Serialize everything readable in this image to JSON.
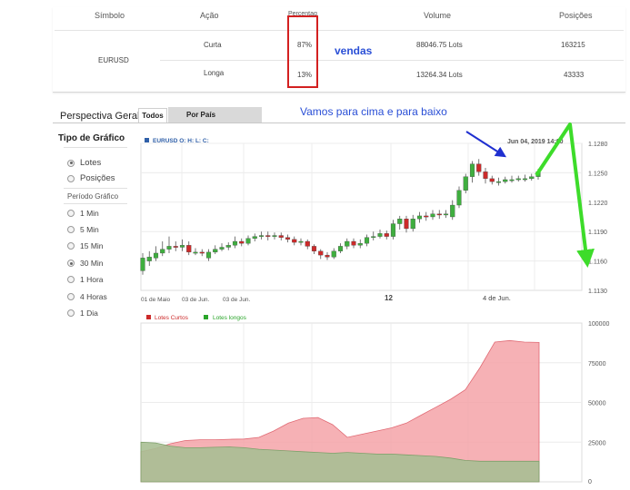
{
  "table": {
    "headers": [
      "Símbolo",
      "Ação",
      "Percentag",
      "Volume",
      "Posições"
    ],
    "symbol": "EURUSD",
    "rows": [
      {
        "action": "Curta",
        "percent": "87%",
        "volume": "88046.75 Lots",
        "positions": "163215"
      },
      {
        "action": "Longa",
        "percent": "13%",
        "volume": "13264.34 Lots",
        "positions": "43333"
      }
    ]
  },
  "annotations": {
    "vendas": "vendas",
    "up_down": "Vamos para cima e para baixo"
  },
  "tabs": {
    "title": "Perspectiva Geral",
    "items": [
      {
        "label": "Todos",
        "active": true
      },
      {
        "label": "Por País",
        "active": false
      }
    ]
  },
  "panel": {
    "title": "Tipo de Gráfico",
    "chart_types": [
      {
        "label": "Lotes",
        "selected": true
      },
      {
        "label": "Posições",
        "selected": false
      }
    ],
    "period_label": "Período Gráfico",
    "periods": [
      {
        "label": "1 Min",
        "selected": false
      },
      {
        "label": "5 Min",
        "selected": false
      },
      {
        "label": "15 Min",
        "selected": false
      },
      {
        "label": "30 Min",
        "selected": true
      },
      {
        "label": "1 Hora",
        "selected": false
      },
      {
        "label": "4 Horas",
        "selected": false
      },
      {
        "label": "1 Dia",
        "selected": false
      }
    ]
  },
  "price_chart": {
    "symbol_line": "EURUSD O: H: L: C:",
    "timestamp": "Jun 04, 2019 14:00",
    "y_ticks": [
      "1.1280",
      "1.1250",
      "1.1220",
      "1.1190",
      "1.1160",
      "1.1130"
    ],
    "x_ticks": [
      "01 de Maio",
      "03 de Jun.",
      "03 de Jun.",
      "12",
      "4 de Jun."
    ],
    "colors": {
      "up": "#3fae3f",
      "down": "#cc2a2a"
    }
  },
  "chart_data": [
    {
      "type": "candlestick",
      "ylim": [
        1.113,
        1.128
      ],
      "candles": [
        {
          "o": 1.115,
          "c": 1.1163,
          "h": 1.1168,
          "l": 1.1146
        },
        {
          "o": 1.116,
          "c": 1.1164,
          "h": 1.117,
          "l": 1.1155
        },
        {
          "o": 1.1163,
          "c": 1.1168,
          "h": 1.1175,
          "l": 1.116
        },
        {
          "o": 1.1168,
          "c": 1.1172,
          "h": 1.118,
          "l": 1.1165
        },
        {
          "o": 1.1172,
          "c": 1.1175,
          "h": 1.1185,
          "l": 1.1168
        },
        {
          "o": 1.1175,
          "c": 1.1174,
          "h": 1.118,
          "l": 1.117
        },
        {
          "o": 1.1174,
          "c": 1.1176,
          "h": 1.1182,
          "l": 1.117
        },
        {
          "o": 1.1176,
          "c": 1.1169,
          "h": 1.118,
          "l": 1.1166
        },
        {
          "o": 1.1169,
          "c": 1.1169,
          "h": 1.1173,
          "l": 1.1166
        },
        {
          "o": 1.1169,
          "c": 1.1168,
          "h": 1.1172,
          "l": 1.1165
        },
        {
          "o": 1.1163,
          "c": 1.1169,
          "h": 1.1172,
          "l": 1.116
        },
        {
          "o": 1.1169,
          "c": 1.1172,
          "h": 1.1176,
          "l": 1.1167
        },
        {
          "o": 1.1172,
          "c": 1.1174,
          "h": 1.1178,
          "l": 1.117
        },
        {
          "o": 1.1174,
          "c": 1.1176,
          "h": 1.1179,
          "l": 1.1171
        },
        {
          "o": 1.1176,
          "c": 1.118,
          "h": 1.1185,
          "l": 1.1173
        },
        {
          "o": 1.118,
          "c": 1.1178,
          "h": 1.1183,
          "l": 1.1175
        },
        {
          "o": 1.1178,
          "c": 1.1183,
          "h": 1.1186,
          "l": 1.1176
        },
        {
          "o": 1.1183,
          "c": 1.1185,
          "h": 1.1188,
          "l": 1.118
        },
        {
          "o": 1.1185,
          "c": 1.1186,
          "h": 1.119,
          "l": 1.1182
        },
        {
          "o": 1.1186,
          "c": 1.1185,
          "h": 1.119,
          "l": 1.1181
        },
        {
          "o": 1.1185,
          "c": 1.1186,
          "h": 1.1189,
          "l": 1.1182
        },
        {
          "o": 1.1186,
          "c": 1.1184,
          "h": 1.1189,
          "l": 1.1181
        },
        {
          "o": 1.1184,
          "c": 1.1182,
          "h": 1.1187,
          "l": 1.1179
        },
        {
          "o": 1.1182,
          "c": 1.1179,
          "h": 1.1185,
          "l": 1.1176
        },
        {
          "o": 1.1179,
          "c": 1.118,
          "h": 1.1183,
          "l": 1.1176
        },
        {
          "o": 1.118,
          "c": 1.1175,
          "h": 1.1182,
          "l": 1.1172
        },
        {
          "o": 1.1175,
          "c": 1.117,
          "h": 1.1177,
          "l": 1.1167
        },
        {
          "o": 1.117,
          "c": 1.1166,
          "h": 1.1172,
          "l": 1.1162
        },
        {
          "o": 1.1166,
          "c": 1.1164,
          "h": 1.1169,
          "l": 1.1161
        },
        {
          "o": 1.1164,
          "c": 1.117,
          "h": 1.1173,
          "l": 1.1162
        },
        {
          "o": 1.117,
          "c": 1.1175,
          "h": 1.1178,
          "l": 1.1168
        },
        {
          "o": 1.1175,
          "c": 1.118,
          "h": 1.1183,
          "l": 1.1172
        },
        {
          "o": 1.118,
          "c": 1.1176,
          "h": 1.1183,
          "l": 1.1173
        },
        {
          "o": 1.1176,
          "c": 1.1178,
          "h": 1.1182,
          "l": 1.1173
        },
        {
          "o": 1.1178,
          "c": 1.1184,
          "h": 1.1187,
          "l": 1.1175
        },
        {
          "o": 1.1184,
          "c": 1.1185,
          "h": 1.119,
          "l": 1.1181
        },
        {
          "o": 1.1185,
          "c": 1.1188,
          "h": 1.1192,
          "l": 1.1183
        },
        {
          "o": 1.1188,
          "c": 1.1185,
          "h": 1.1191,
          "l": 1.1182
        },
        {
          "o": 1.1185,
          "c": 1.1198,
          "h": 1.1202,
          "l": 1.1182
        },
        {
          "o": 1.1198,
          "c": 1.1203,
          "h": 1.1206,
          "l": 1.1192
        },
        {
          "o": 1.1203,
          "c": 1.1193,
          "h": 1.1206,
          "l": 1.1189
        },
        {
          "o": 1.1193,
          "c": 1.1203,
          "h": 1.1207,
          "l": 1.119
        },
        {
          "o": 1.1203,
          "c": 1.1206,
          "h": 1.121,
          "l": 1.1199
        },
        {
          "o": 1.1206,
          "c": 1.1205,
          "h": 1.121,
          "l": 1.1201
        },
        {
          "o": 1.1205,
          "c": 1.1208,
          "h": 1.1212,
          "l": 1.1202
        },
        {
          "o": 1.1208,
          "c": 1.1207,
          "h": 1.1212,
          "l": 1.1203
        },
        {
          "o": 1.1207,
          "c": 1.1208,
          "h": 1.1212,
          "l": 1.1204
        },
        {
          "o": 1.1205,
          "c": 1.1217,
          "h": 1.1222,
          "l": 1.1202
        },
        {
          "o": 1.1217,
          "c": 1.1232,
          "h": 1.1236,
          "l": 1.1214
        },
        {
          "o": 1.1232,
          "c": 1.1246,
          "h": 1.1249,
          "l": 1.1229
        },
        {
          "o": 1.1246,
          "c": 1.1259,
          "h": 1.1262,
          "l": 1.124
        },
        {
          "o": 1.1259,
          "c": 1.1251,
          "h": 1.1264,
          "l": 1.1247
        },
        {
          "o": 1.1251,
          "c": 1.1244,
          "h": 1.1255,
          "l": 1.1239
        },
        {
          "o": 1.1244,
          "c": 1.1241,
          "h": 1.1247,
          "l": 1.1238
        },
        {
          "o": 1.1241,
          "c": 1.1241,
          "h": 1.1245,
          "l": 1.1237
        },
        {
          "o": 1.1241,
          "c": 1.1243,
          "h": 1.1246,
          "l": 1.1239
        },
        {
          "o": 1.1243,
          "c": 1.1243,
          "h": 1.1247,
          "l": 1.124
        },
        {
          "o": 1.1243,
          "c": 1.1244,
          "h": 1.1247,
          "l": 1.1241
        },
        {
          "o": 1.1244,
          "c": 1.1244,
          "h": 1.1248,
          "l": 1.1241
        },
        {
          "o": 1.1244,
          "c": 1.1246,
          "h": 1.1249,
          "l": 1.1242
        },
        {
          "o": 1.1246,
          "c": 1.1251,
          "h": 1.1254,
          "l": 1.1243
        }
      ]
    },
    {
      "type": "area",
      "ylim": [
        0,
        100000
      ],
      "y_ticks": [
        "100000",
        "75000",
        "50000",
        "25000",
        "0"
      ],
      "legend": [
        "Lotes Curtos",
        "Lotes longos"
      ],
      "series": [
        {
          "name": "Lotes Curtos",
          "color": "#f4a3a8",
          "values": [
            19000,
            21000,
            24000,
            26000,
            26500,
            26500,
            26800,
            27000,
            28000,
            32000,
            37000,
            40000,
            40500,
            36000,
            28000,
            30000,
            32000,
            34000,
            37000,
            42000,
            47000,
            52000,
            58000,
            72000,
            88000,
            89000,
            88000,
            87800
          ]
        },
        {
          "name": "Lotes longos",
          "color": "#a9bf93",
          "values": [
            25000,
            24500,
            22500,
            21500,
            21500,
            21800,
            22000,
            21500,
            20500,
            20000,
            19500,
            19000,
            18500,
            18000,
            18500,
            18000,
            17500,
            17500,
            17000,
            16500,
            16000,
            15000,
            13500,
            13000,
            13000,
            13000,
            13000,
            13000
          ]
        }
      ]
    }
  ]
}
